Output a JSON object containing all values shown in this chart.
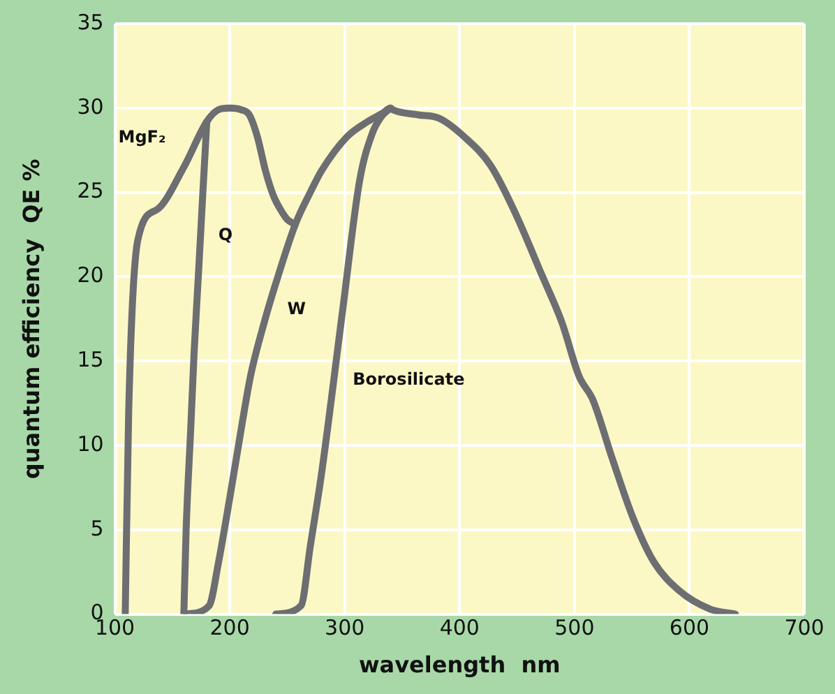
{
  "chart_data": {
    "type": "line",
    "xlabel": "wavelength  nm",
    "ylabel": "quantum efficiency  QE %",
    "xlim": [
      100,
      700
    ],
    "xticks": [
      100,
      200,
      300,
      400,
      500,
      600,
      700
    ],
    "ylim": [
      0,
      35
    ],
    "yticks": [
      0,
      5,
      10,
      15,
      20,
      25,
      30,
      35
    ],
    "grid": true,
    "marker": "none",
    "line_style": "solid",
    "series": [
      {
        "name": "MgF₂",
        "color": "#6d6e72",
        "x": [
          109,
          112,
          120,
          137,
          160,
          180,
          190,
          200,
          210,
          217,
          224,
          231,
          238,
          244,
          250,
          257
        ],
        "values": [
          0,
          12,
          22.2,
          24,
          26.5,
          29.2,
          29.9,
          30,
          29.9,
          29.6,
          28.3,
          26.3,
          24.8,
          24,
          23.4,
          23.1
        ]
      },
      {
        "name": "Q",
        "color": "#6d6e72",
        "x": [
          160,
          162,
          166,
          169,
          173,
          176,
          180
        ],
        "values": [
          0,
          5,
          11,
          15.6,
          20.5,
          24.3,
          29.2
        ]
      },
      {
        "name": "W",
        "color": "#6d6e72",
        "x": [
          162,
          182,
          190,
          200,
          210,
          218,
          230,
          240,
          257,
          270,
          280,
          302,
          320,
          333,
          340,
          342,
          364,
          382,
          404,
          427,
          449,
          471,
          489,
          504,
          516,
          533,
          551,
          569,
          591,
          618,
          640
        ],
        "values": [
          0,
          0.5,
          3,
          6.9,
          11,
          14.1,
          17.3,
          19.6,
          23.1,
          25,
          26.3,
          28.3,
          29.2,
          29.7,
          30,
          29.9,
          29.6,
          29.4,
          28.3,
          26.6,
          23.7,
          20.2,
          17.3,
          14.1,
          12.7,
          9.2,
          5.7,
          3.1,
          1.4,
          0.3,
          0
        ]
      },
      {
        "name": "Borosilicate",
        "color": "#6d6e72",
        "x": [
          240,
          262,
          270,
          280,
          298,
          313,
          324,
          332,
          340
        ],
        "values": [
          0,
          0.5,
          4,
          8.4,
          17.9,
          25.7,
          28.5,
          29.5,
          30
        ]
      }
    ]
  }
}
